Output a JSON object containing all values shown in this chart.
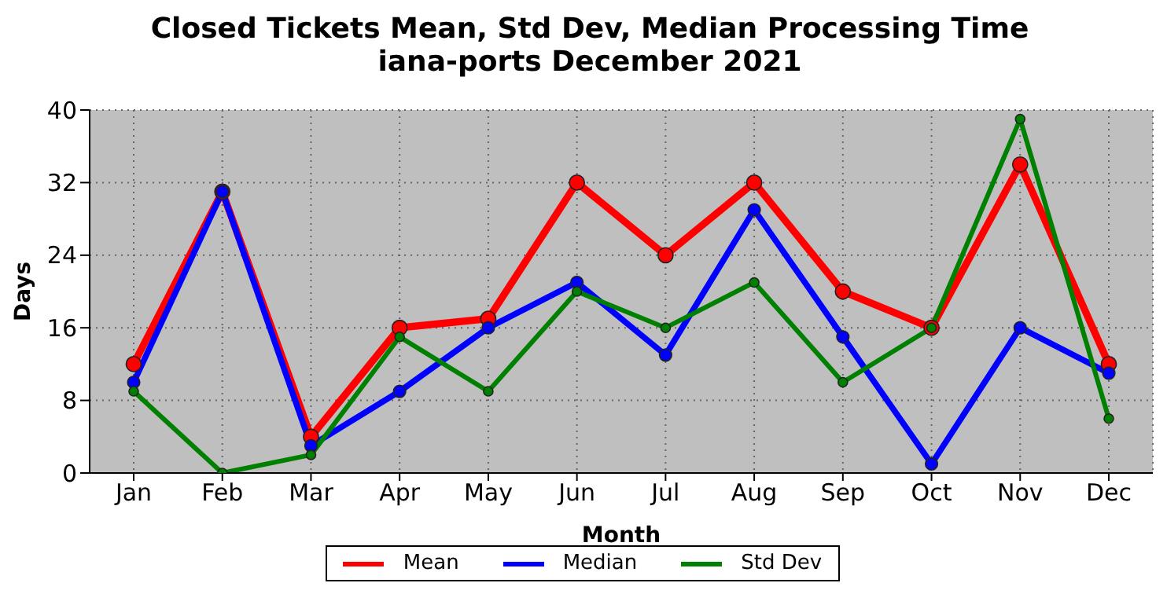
{
  "chart_data": {
    "type": "line",
    "title": "Closed Tickets Mean, Std Dev, Median Processing Time\niana-ports December 2021",
    "xlabel": "Month",
    "ylabel": "Days",
    "categories": [
      "Jan",
      "Feb",
      "Mar",
      "Apr",
      "May",
      "Jun",
      "Jul",
      "Aug",
      "Sep",
      "Oct",
      "Nov",
      "Dec"
    ],
    "series": [
      {
        "name": "Mean",
        "color": "#ff0000",
        "values": [
          12,
          31,
          4,
          16,
          17,
          32,
          24,
          32,
          20,
          16,
          34,
          12
        ]
      },
      {
        "name": "Median",
        "color": "#0000ff",
        "values": [
          10,
          31,
          3,
          9,
          16,
          21,
          13,
          29,
          15,
          1,
          16,
          11
        ]
      },
      {
        "name": "Std Dev",
        "color": "#008000",
        "values": [
          9,
          0,
          2,
          15,
          9,
          20,
          16,
          21,
          10,
          16,
          39,
          6
        ]
      }
    ],
    "ylim": [
      0,
      40
    ],
    "yticks": [
      0,
      8,
      16,
      24,
      32,
      40
    ],
    "grid": true,
    "legend": "bottom",
    "marker": "circle",
    "line_style": "solid"
  }
}
